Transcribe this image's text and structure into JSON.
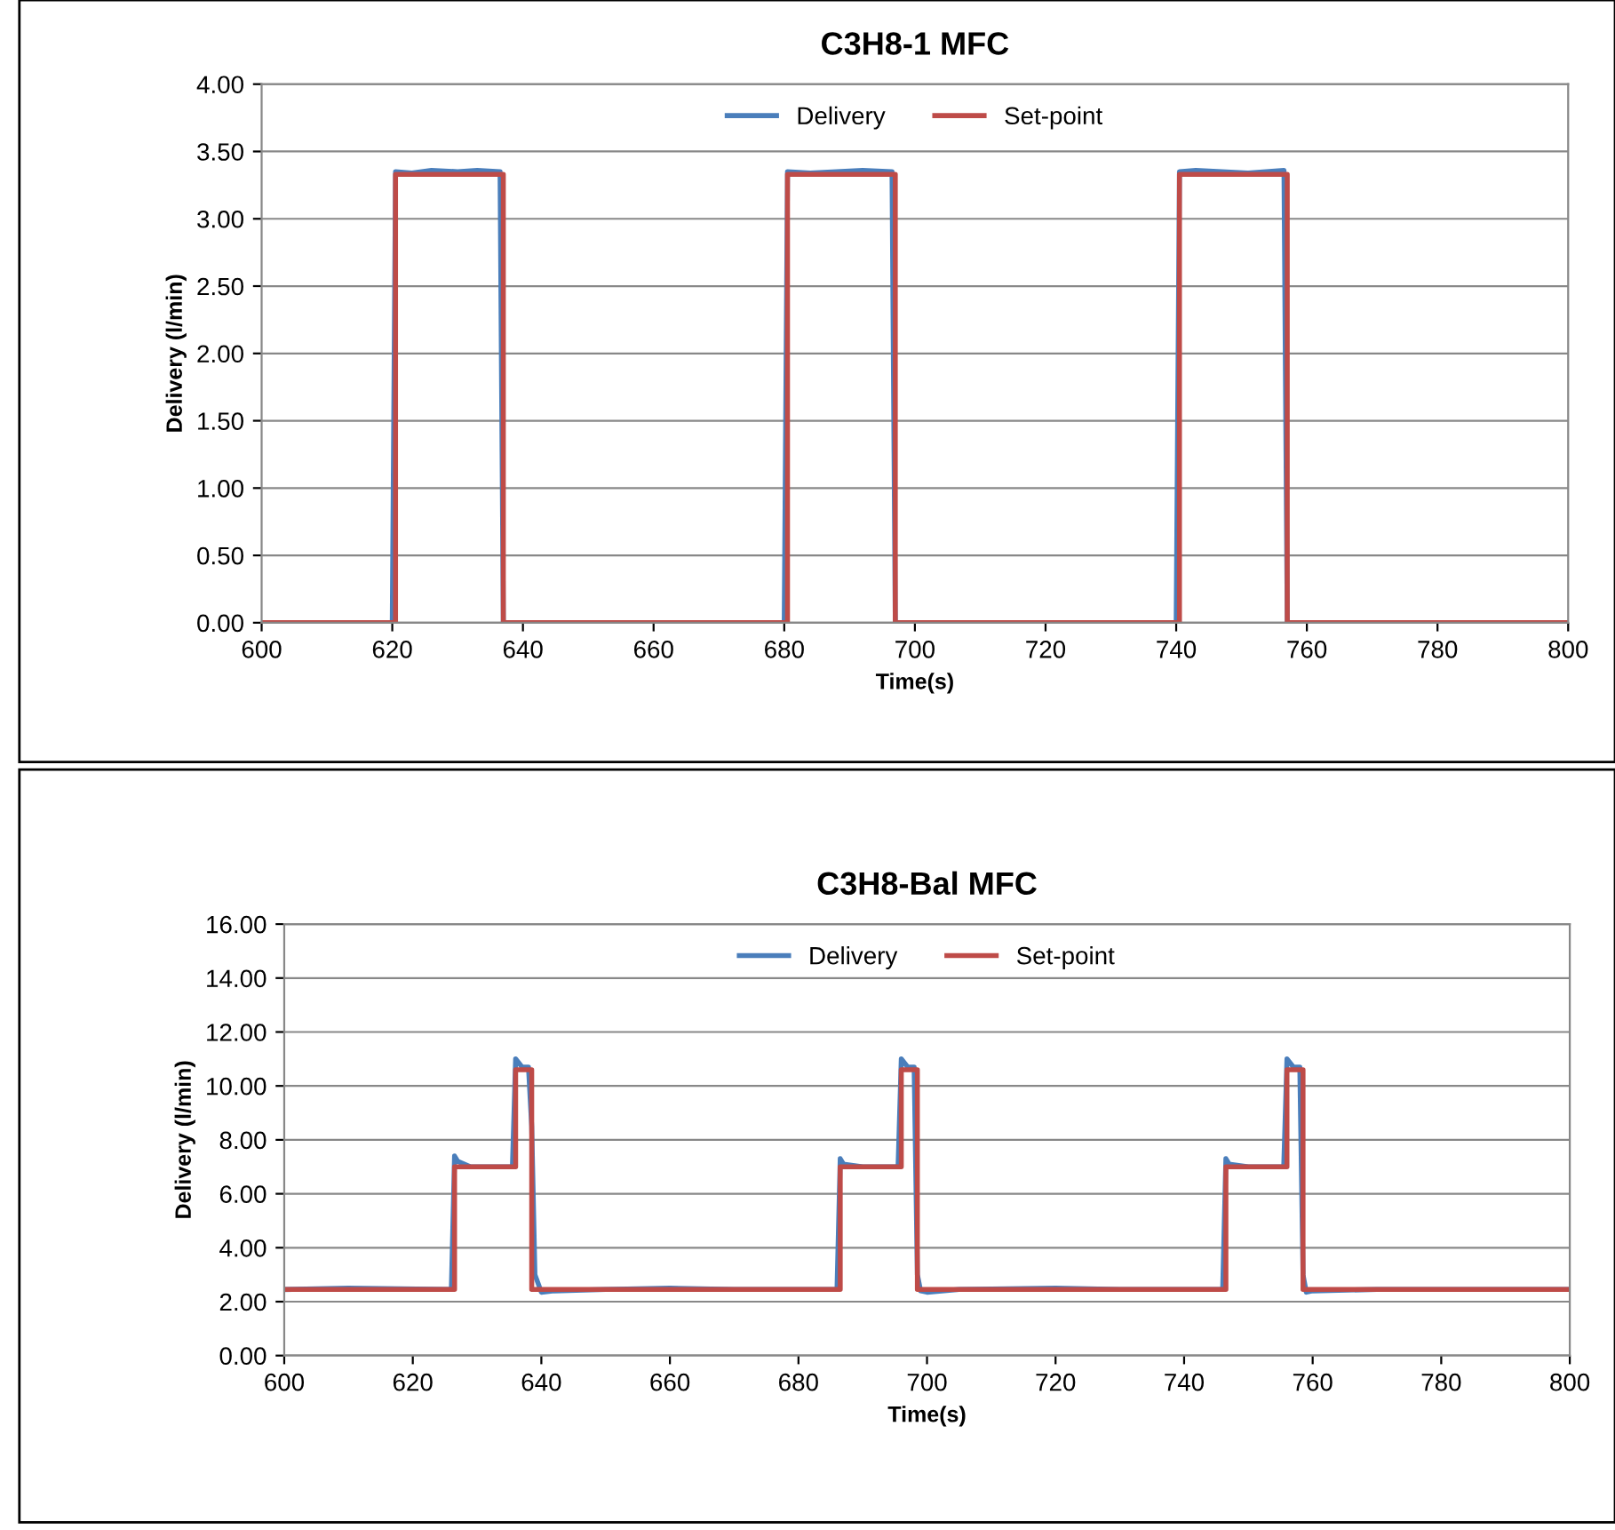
{
  "chart_data": [
    {
      "type": "line",
      "title": "C3H8-1 MFC",
      "xlabel": "Time(s)",
      "ylabel": "Delivery (l/min)",
      "legend": "top",
      "grid": "y",
      "marker": "none",
      "line_style": "solid",
      "xlim": [
        600,
        800
      ],
      "xticks": [
        600,
        620,
        640,
        660,
        680,
        700,
        720,
        740,
        760,
        780,
        800
      ],
      "ylim": [
        0,
        4
      ],
      "yticks": [
        {
          "value": 0,
          "label": "0.00"
        },
        {
          "value": 0.5,
          "label": "0.50"
        },
        {
          "value": 1,
          "label": "1.00"
        },
        {
          "value": 1.5,
          "label": "1.50"
        },
        {
          "value": 2,
          "label": "2.00"
        },
        {
          "value": 2.5,
          "label": "2.50"
        },
        {
          "value": 3,
          "label": "3.00"
        },
        {
          "value": 3.5,
          "label": "3.50"
        },
        {
          "value": 4,
          "label": "4.00"
        }
      ],
      "series": [
        {
          "name": "Delivery",
          "color": "#4a7ebb",
          "x": [
            600,
            620,
            620.5,
            623,
            626,
            630,
            633,
            636.5,
            637,
            680,
            680.5,
            684,
            688,
            692,
            696.5,
            697,
            740,
            740.5,
            743,
            747,
            751,
            756.5,
            757,
            800
          ],
          "values": [
            0,
            0,
            3.35,
            3.34,
            3.36,
            3.35,
            3.36,
            3.35,
            0,
            0,
            3.35,
            3.34,
            3.35,
            3.36,
            3.35,
            0,
            0,
            3.35,
            3.36,
            3.35,
            3.34,
            3.36,
            0,
            0
          ]
        },
        {
          "name": "Set-point",
          "color": "#be4b48",
          "x": [
            600,
            620.5,
            620.5,
            637,
            637,
            680.5,
            680.5,
            697,
            697,
            740.5,
            740.5,
            757,
            757,
            800
          ],
          "values": [
            0,
            0,
            3.33,
            3.33,
            0,
            0,
            3.33,
            3.33,
            0,
            0,
            3.33,
            3.33,
            0,
            0
          ]
        }
      ]
    },
    {
      "type": "line",
      "title": "C3H8-Bal MFC",
      "xlabel": "Time(s)",
      "ylabel": "Delivery (l/min)",
      "legend": "top",
      "grid": "y",
      "marker": "none",
      "line_style": "solid",
      "xlim": [
        600,
        800
      ],
      "xticks": [
        600,
        620,
        640,
        660,
        680,
        700,
        720,
        740,
        760,
        780,
        800
      ],
      "ylim": [
        0,
        16
      ],
      "yticks": [
        {
          "value": 0,
          "label": "0.00"
        },
        {
          "value": 2,
          "label": "2.00"
        },
        {
          "value": 4,
          "label": "4.00"
        },
        {
          "value": 6,
          "label": "6.00"
        },
        {
          "value": 8,
          "label": "8.00"
        },
        {
          "value": 10,
          "label": "10.00"
        },
        {
          "value": 12,
          "label": "12.00"
        },
        {
          "value": 14,
          "label": "14.00"
        },
        {
          "value": 16,
          "label": "16.00"
        }
      ],
      "series": [
        {
          "name": "Delivery",
          "color": "#4a7ebb",
          "x": [
            600,
            610,
            626,
            626.5,
            627,
            629,
            632,
            635.5,
            636,
            637,
            638,
            638.5,
            639,
            640,
            642,
            650,
            660,
            670,
            686,
            686.5,
            687,
            690,
            695.5,
            696,
            697,
            698,
            698.5,
            699,
            700,
            705,
            720,
            730,
            746,
            746.5,
            747,
            750,
            755.5,
            756,
            757,
            758,
            758.5,
            759,
            760,
            770,
            790,
            800
          ],
          "values": [
            2.45,
            2.5,
            2.45,
            7.4,
            7.2,
            7.0,
            7.0,
            7.0,
            11.0,
            10.7,
            10.7,
            8.5,
            3.0,
            2.35,
            2.4,
            2.45,
            2.5,
            2.45,
            2.45,
            7.3,
            7.1,
            7.0,
            7.0,
            11.0,
            10.7,
            10.7,
            3.0,
            2.4,
            2.35,
            2.45,
            2.5,
            2.45,
            2.45,
            7.3,
            7.1,
            7.0,
            7.0,
            11.0,
            10.7,
            10.7,
            3.0,
            2.35,
            2.4,
            2.45,
            2.45,
            2.45
          ]
        },
        {
          "name": "Set-point",
          "color": "#be4b48",
          "x": [
            600,
            626.5,
            626.5,
            636,
            636,
            638.5,
            638.5,
            686.5,
            686.5,
            696,
            696,
            698.5,
            698.5,
            746.5,
            746.5,
            756,
            756,
            758.5,
            758.5,
            800
          ],
          "values": [
            2.45,
            2.45,
            7.0,
            7.0,
            10.6,
            10.6,
            2.45,
            2.45,
            7.0,
            7.0,
            10.6,
            10.6,
            2.45,
            2.45,
            7.0,
            7.0,
            10.6,
            10.6,
            2.45,
            2.45
          ]
        }
      ]
    }
  ]
}
